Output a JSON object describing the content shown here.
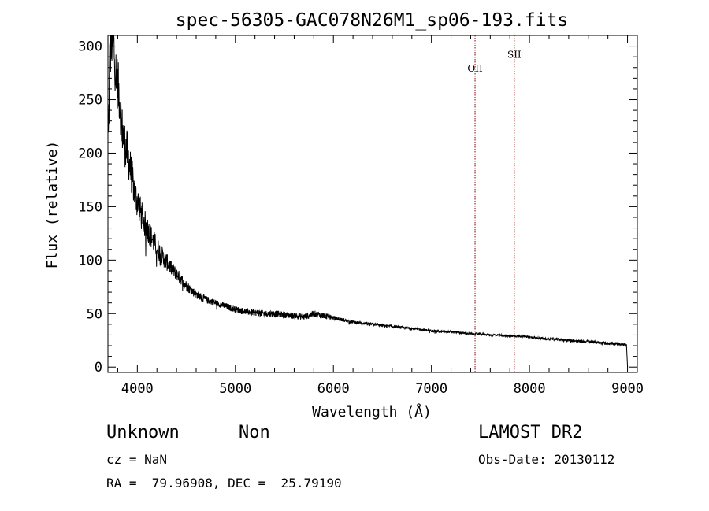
{
  "chart_data": {
    "type": "line",
    "title": "spec-56305-GAC078N26M1_sp06-193.fits",
    "xlabel": "Wavelength (Å)",
    "ylabel": "Flux (relative)",
    "xlim": [
      3700,
      9100
    ],
    "ylim": [
      -5,
      310
    ],
    "x_ticks": [
      4000,
      5000,
      6000,
      7000,
      8000,
      9000
    ],
    "y_ticks": [
      0,
      50,
      100,
      150,
      200,
      250,
      300
    ],
    "x_tick_labels": [
      "4000",
      "5000",
      "6000",
      "7000",
      "8000",
      "9000"
    ],
    "y_tick_labels": [
      "0",
      "50",
      "100",
      "150",
      "200",
      "250",
      "300"
    ],
    "line_color": "#000000",
    "marker_color": "#8b0000",
    "emission_lines": [
      {
        "label": "OII",
        "x": 7445,
        "label_y": 276
      },
      {
        "label": "SII",
        "x": 7845,
        "label_y": 289
      }
    ],
    "series": [
      {
        "name": "spectrum",
        "x": [
          3705,
          3720,
          3740,
          3760,
          3780,
          3800,
          3820,
          3840,
          3860,
          3880,
          3900,
          3920,
          3940,
          3960,
          3980,
          4000,
          4020,
          4040,
          4060,
          4080,
          4100,
          4150,
          4200,
          4250,
          4300,
          4350,
          4400,
          4450,
          4500,
          4550,
          4600,
          4700,
          4800,
          4900,
          5000,
          5100,
          5200,
          5300,
          5400,
          5500,
          5600,
          5700,
          5800,
          5900,
          6000,
          6100,
          6200,
          6300,
          6400,
          6500,
          6600,
          6700,
          6800,
          6900,
          7000,
          7100,
          7200,
          7300,
          7400,
          7500,
          7600,
          7700,
          7800,
          7900,
          8000,
          8100,
          8200,
          8300,
          8400,
          8500,
          8600,
          8700,
          8800,
          8900,
          8960,
          8990,
          9000
        ],
        "y": [
          210,
          295,
          305,
          300,
          275,
          265,
          250,
          225,
          215,
          205,
          200,
          190,
          180,
          170,
          160,
          155,
          150,
          142,
          138,
          133,
          130,
          120,
          112,
          104,
          98,
          92,
          87,
          82,
          76,
          72,
          68,
          63,
          60,
          57,
          54,
          52,
          51,
          50,
          50,
          49,
          48,
          47,
          50,
          48,
          46,
          44,
          42,
          41,
          40,
          39,
          38,
          37,
          36,
          35,
          34,
          33,
          33,
          32,
          31,
          31,
          30,
          30,
          29,
          29,
          28,
          27,
          26,
          26,
          25,
          24,
          24,
          23,
          22,
          22,
          21,
          20,
          0
        ],
        "noise": [
          30,
          30,
          28,
          26,
          26,
          25,
          24,
          22,
          22,
          21,
          20,
          19,
          18,
          17,
          16,
          16,
          15,
          14,
          14,
          13,
          12,
          11,
          10,
          9,
          8,
          7,
          6,
          5.5,
          5,
          4.5,
          4,
          3.5,
          3,
          3,
          3,
          3,
          3,
          3,
          3,
          3,
          3,
          3,
          3,
          3,
          2,
          1.6,
          1.5,
          1.4,
          1.3,
          1.3,
          1.2,
          1.2,
          1.2,
          1.1,
          1.1,
          1.1,
          1,
          1,
          1,
          1,
          1,
          1,
          1,
          1,
          1,
          1,
          1.2,
          1.2,
          1.3,
          1.3,
          1.3,
          1.3,
          1.4,
          1.4,
          1.4,
          1.4,
          0
        ]
      }
    ]
  },
  "info": {
    "class": "Unknown",
    "subclass": "Non",
    "survey": "LAMOST DR2",
    "cz": "cz = NaN",
    "obs_date": "Obs-Date: 20130112",
    "coords": "RA =  79.96908, DEC =  25.79190"
  }
}
